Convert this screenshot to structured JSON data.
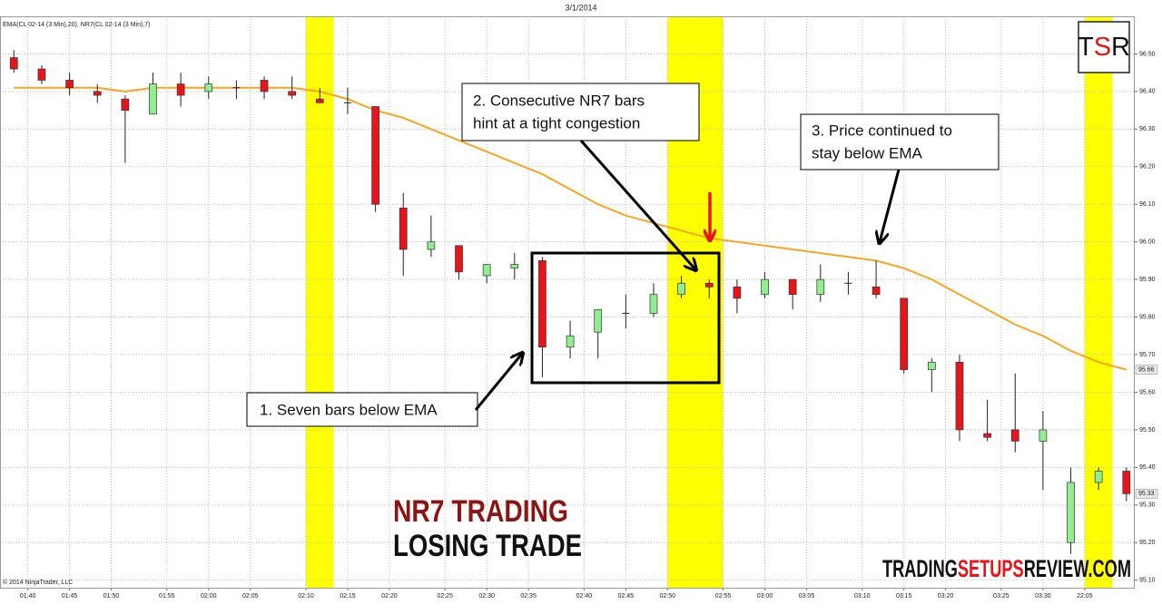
{
  "chart_data": {
    "type": "candlestick",
    "title": "3/1/2014",
    "indicator_label": "EMA(CL 02-14 (3 Min),20), NR7(CL 02-14 (3 Min),7)",
    "copyright": "© 2014 NinjaTrader, LLC",
    "x": [
      0,
      1,
      2,
      3,
      4,
      5,
      6,
      7,
      8,
      9,
      10,
      11,
      12,
      13,
      14,
      15,
      16,
      17,
      18,
      19,
      20,
      21,
      22,
      23,
      24,
      25,
      26,
      27,
      28,
      29,
      30,
      31,
      32,
      33,
      34,
      35,
      36,
      37,
      38,
      39,
      40
    ],
    "open": [
      96.49,
      96.46,
      96.43,
      96.4,
      96.38,
      96.34,
      96.42,
      96.4,
      96.41,
      96.43,
      96.4,
      96.38,
      96.37,
      96.36,
      96.09,
      95.98,
      95.99,
      95.91,
      95.93,
      95.95,
      95.72,
      95.76,
      95.81,
      95.81,
      95.86,
      95.89,
      95.88,
      95.86,
      95.9,
      95.86,
      95.89,
      95.88,
      95.85,
      95.66,
      95.68,
      95.49,
      95.5,
      95.47,
      95.2,
      95.36,
      95.39
    ],
    "high": [
      96.51,
      96.47,
      96.45,
      96.42,
      96.39,
      96.45,
      96.45,
      96.44,
      96.43,
      96.44,
      96.44,
      96.41,
      96.41,
      96.36,
      96.13,
      96.07,
      95.99,
      95.94,
      95.97,
      95.96,
      95.79,
      95.82,
      95.86,
      95.89,
      95.91,
      95.9,
      95.9,
      95.92,
      95.9,
      95.94,
      95.92,
      95.95,
      95.85,
      95.69,
      95.7,
      95.58,
      95.65,
      95.55,
      95.4,
      95.4,
      95.4
    ],
    "low": [
      96.45,
      96.42,
      96.39,
      96.37,
      96.21,
      96.34,
      96.36,
      96.38,
      96.38,
      96.38,
      96.38,
      96.37,
      96.34,
      96.08,
      95.91,
      95.96,
      95.9,
      95.89,
      95.9,
      95.64,
      95.69,
      95.69,
      95.77,
      95.8,
      95.85,
      95.85,
      95.81,
      95.85,
      95.82,
      95.84,
      95.86,
      95.85,
      95.65,
      95.6,
      95.47,
      95.47,
      95.44,
      95.34,
      95.17,
      95.34,
      95.31
    ],
    "close": [
      96.46,
      96.43,
      96.41,
      96.39,
      96.35,
      96.42,
      96.39,
      96.42,
      96.41,
      96.4,
      96.39,
      96.37,
      96.37,
      96.1,
      95.98,
      96.0,
      95.92,
      95.94,
      95.94,
      95.72,
      95.75,
      95.82,
      95.81,
      95.86,
      95.89,
      95.88,
      95.85,
      95.9,
      95.86,
      95.9,
      95.89,
      95.86,
      95.66,
      95.68,
      95.5,
      95.48,
      95.47,
      95.5,
      95.36,
      95.39,
      95.33
    ],
    "up_color": "#90ee90",
    "down_color": "#e8141c",
    "ema": {
      "color": "#f5a623",
      "values": [
        96.41,
        96.41,
        96.41,
        96.41,
        96.4,
        96.41,
        96.41,
        96.41,
        96.41,
        96.41,
        96.41,
        96.4,
        96.38,
        96.35,
        96.33,
        96.3,
        96.27,
        96.24,
        96.21,
        96.18,
        96.14,
        96.1,
        96.07,
        96.05,
        96.03,
        96.01,
        96.0,
        95.99,
        95.98,
        95.97,
        95.96,
        95.95,
        95.93,
        95.9,
        95.86,
        95.82,
        95.78,
        95.75,
        95.71,
        95.68,
        95.66
      ]
    },
    "nr7_bars": [
      11,
      24,
      25,
      39
    ],
    "highlight_color": "#ffff00",
    "xlim": [
      -0.5,
      40.3
    ],
    "ylim": [
      95.08,
      96.6
    ],
    "xticks": [
      {
        "value": 0.5,
        "label": "01:40"
      },
      {
        "value": 2,
        "label": "01:45"
      },
      {
        "value": 3.5,
        "label": "01:50"
      },
      {
        "value": 5.5,
        "label": "01:55"
      },
      {
        "value": 7,
        "label": "02:00"
      },
      {
        "value": 8.5,
        "label": "02:05"
      },
      {
        "value": 10.5,
        "label": "02:10"
      },
      {
        "value": 12,
        "label": "02:15"
      },
      {
        "value": 13.5,
        "label": "02:20"
      },
      {
        "value": 15.5,
        "label": "02:25"
      },
      {
        "value": 17,
        "label": "02:30"
      },
      {
        "value": 18.5,
        "label": "02:35"
      },
      {
        "value": 20.5,
        "label": "02:40"
      },
      {
        "value": 22,
        "label": "02:45"
      },
      {
        "value": 23.5,
        "label": "02:50"
      },
      {
        "value": 25.5,
        "label": "02:55"
      },
      {
        "value": 27,
        "label": "03:00"
      },
      {
        "value": 28.5,
        "label": "03:05"
      },
      {
        "value": 30.5,
        "label": "03:10"
      },
      {
        "value": 32,
        "label": "03:15"
      },
      {
        "value": 33.5,
        "label": "03:20"
      },
      {
        "value": 35.5,
        "label": "03:25"
      },
      {
        "value": 37,
        "label": "03:30"
      },
      {
        "value": 38.5,
        "label": "22:05"
      }
    ],
    "yticks": [
      {
        "value": 96.5,
        "label": "96.50"
      },
      {
        "value": 96.4,
        "label": "96.40"
      },
      {
        "value": 96.3,
        "label": "96.30"
      },
      {
        "value": 96.2,
        "label": "96.20"
      },
      {
        "value": 96.1,
        "label": "96.10"
      },
      {
        "value": 96.0,
        "label": "96.00"
      },
      {
        "value": 95.9,
        "label": "95.90"
      },
      {
        "value": 95.8,
        "label": "95.80"
      },
      {
        "value": 95.7,
        "label": "95.70"
      },
      {
        "value": 95.6,
        "label": "95.60"
      },
      {
        "value": 95.5,
        "label": "95.50"
      },
      {
        "value": 95.4,
        "label": "95.40"
      },
      {
        "value": 95.3,
        "label": "95.30"
      },
      {
        "value": 95.2,
        "label": "95.20"
      },
      {
        "value": 95.1,
        "label": "95.10"
      }
    ],
    "grid": true,
    "annotations": [
      {
        "lines": [
          "1. Seven bars below  EMA"
        ]
      },
      {
        "lines": [
          "2. Consecutive NR7 bars",
          "hint at a tight congestion"
        ]
      },
      {
        "lines": [
          "3. Price continued to",
          "stay below  EMA"
        ]
      }
    ],
    "headline": [
      "NR7 TRADING",
      "LOSING TRADE"
    ],
    "logo": [
      "T",
      "S",
      "R"
    ],
    "watermark": [
      "TRADING",
      "SETUPS",
      "REVIEW.COM"
    ]
  }
}
